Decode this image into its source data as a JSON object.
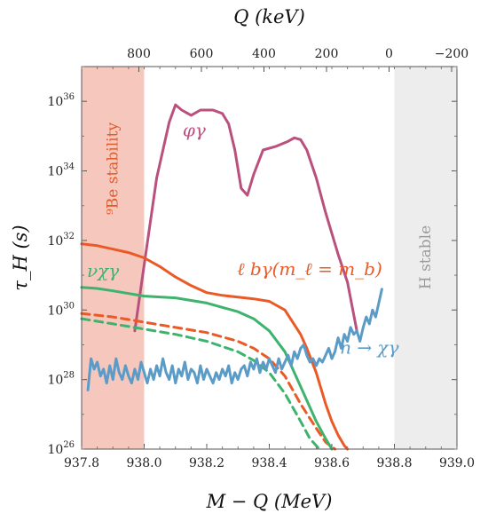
{
  "chart_data": {
    "type": "line",
    "xlabel": "M − Q (MeV)",
    "ylabel": "τ_H (s)",
    "x2label": "Q (keV)",
    "xlim": [
      937.8,
      939.0
    ],
    "ylim_log10": [
      26,
      37
    ],
    "yscale": "log",
    "grid": false,
    "x_ticks": [
      "937.8",
      "938.0",
      "938.2",
      "938.4",
      "938.6",
      "938.8",
      "939.0"
    ],
    "x_tick_values": [
      937.8,
      938.0,
      938.2,
      938.4,
      938.6,
      938.8,
      939.0
    ],
    "x2_ticks": [
      "800",
      "600",
      "400",
      "200",
      "0",
      "−200"
    ],
    "x2_tick_values_keV": [
      800,
      600,
      400,
      200,
      0,
      -200
    ],
    "y_ticks": [
      {
        "base": "10",
        "exp": "26",
        "log10": 26
      },
      {
        "base": "10",
        "exp": "28",
        "log10": 28
      },
      {
        "base": "10",
        "exp": "30",
        "log10": 30
      },
      {
        "base": "10",
        "exp": "32",
        "log10": 32
      },
      {
        "base": "10",
        "exp": "34",
        "log10": 34
      },
      {
        "base": "10",
        "exp": "36",
        "log10": 36
      }
    ],
    "regions": [
      {
        "label": "⁹Be stability",
        "x_range": [
          937.8,
          938.0
        ],
        "color": "#f6c8bd",
        "label_color": "#e05a2b"
      },
      {
        "label": "H stable",
        "x_range": [
          938.8,
          939.0
        ],
        "color": "#ededed",
        "label_color": "#9a9a9a"
      }
    ],
    "series": [
      {
        "name": "φγ",
        "color": "#b9507e",
        "dashed": false,
        "x": [
          937.97,
          938.0,
          938.04,
          938.08,
          938.1,
          938.12,
          938.15,
          938.18,
          938.22,
          938.25,
          938.27,
          938.29,
          938.31,
          938.33,
          938.35,
          938.38,
          938.42,
          938.46,
          938.48,
          938.5,
          938.52,
          938.55,
          938.58,
          938.62,
          938.65,
          938.68
        ],
        "log10_y": [
          29.4,
          31.3,
          33.8,
          35.4,
          35.9,
          35.75,
          35.6,
          35.75,
          35.75,
          35.65,
          35.35,
          34.6,
          33.5,
          33.3,
          33.9,
          34.6,
          34.7,
          34.85,
          34.95,
          34.9,
          34.6,
          33.8,
          32.8,
          31.6,
          30.8,
          29.4
        ],
        "label_position": {
          "x": 938.16,
          "log10_y": 35.0
        },
        "label_anchor": "middle",
        "label_color": "#b9507e"
      },
      {
        "name": "ℓ bγ(m_ℓ = m_b)",
        "color": "#ea5a26",
        "dashed": false,
        "x": [
          937.8,
          937.85,
          937.9,
          937.95,
          938.0,
          938.05,
          938.1,
          938.15,
          938.2,
          938.25,
          938.3,
          938.35,
          938.4,
          938.45,
          938.5,
          938.52,
          938.55,
          938.58,
          938.6,
          938.62,
          938.64,
          938.65
        ],
        "log10_y": [
          31.9,
          31.85,
          31.75,
          31.65,
          31.5,
          31.25,
          30.95,
          30.7,
          30.5,
          30.42,
          30.37,
          30.32,
          30.25,
          30.0,
          29.3,
          28.9,
          28.2,
          27.3,
          26.8,
          26.4,
          26.1,
          26.0
        ],
        "label_position": {
          "x": 938.28,
          "log10_y": 31.0
        },
        "label_anchor": "start",
        "label_color": "#ea5a26"
      },
      {
        "name": "ℓ bγ dashed",
        "color": "#ea5a26",
        "dashed": true,
        "x": [
          937.8,
          937.9,
          938.0,
          938.1,
          938.2,
          938.3,
          938.35,
          938.4,
          938.45,
          938.5,
          938.55,
          938.58,
          938.61
        ],
        "log10_y": [
          29.9,
          29.8,
          29.65,
          29.5,
          29.35,
          29.1,
          28.9,
          28.6,
          28.1,
          27.3,
          26.6,
          26.2,
          26.0
        ]
      },
      {
        "name": "νχγ",
        "color": "#3db36e",
        "dashed": false,
        "x": [
          937.8,
          937.85,
          937.9,
          938.0,
          938.1,
          938.2,
          938.3,
          938.35,
          938.4,
          938.45,
          938.5,
          938.55,
          938.58,
          938.6
        ],
        "log10_y": [
          30.65,
          30.62,
          30.55,
          30.4,
          30.35,
          30.2,
          29.95,
          29.75,
          29.4,
          28.8,
          27.8,
          26.8,
          26.3,
          26.0
        ],
        "label_position": {
          "x": 937.8,
          "log10_y": 30.95
        },
        "label_anchor": "start",
        "label_color": "#3db36e"
      },
      {
        "name": "νχγ dashed",
        "color": "#3db36e",
        "dashed": true,
        "x": [
          937.8,
          937.9,
          938.0,
          938.1,
          938.2,
          938.3,
          938.35,
          938.4,
          938.45,
          938.5,
          938.53,
          938.56
        ],
        "log10_y": [
          29.75,
          29.6,
          29.45,
          29.3,
          29.1,
          28.8,
          28.55,
          28.2,
          27.6,
          26.8,
          26.3,
          26.0
        ]
      },
      {
        "name": "n → χγ",
        "color": "#5b9bc8",
        "dashed": false,
        "x": [
          937.82,
          937.83,
          937.84,
          937.85,
          937.86,
          937.87,
          937.88,
          937.89,
          937.9,
          937.91,
          937.92,
          937.93,
          937.94,
          937.95,
          937.96,
          937.97,
          937.98,
          937.99,
          938.0,
          938.01,
          938.02,
          938.03,
          938.04,
          938.05,
          938.06,
          938.07,
          938.08,
          938.09,
          938.1,
          938.11,
          938.12,
          938.13,
          938.14,
          938.15,
          938.16,
          938.17,
          938.18,
          938.19,
          938.2,
          938.21,
          938.22,
          938.23,
          938.24,
          938.25,
          938.26,
          938.27,
          938.28,
          938.29,
          938.3,
          938.31,
          938.32,
          938.33,
          938.34,
          938.35,
          938.36,
          938.37,
          938.38,
          938.39,
          938.4,
          938.41,
          938.42,
          938.43,
          938.44,
          938.45,
          938.46,
          938.47,
          938.48,
          938.49,
          938.5,
          938.51,
          938.52,
          938.53,
          938.54,
          938.55,
          938.56,
          938.57,
          938.58,
          938.59,
          938.6,
          938.61,
          938.62,
          938.63,
          938.64,
          938.65,
          938.66,
          938.67,
          938.68,
          938.69,
          938.7,
          938.71,
          938.72,
          938.73,
          938.74,
          938.75,
          938.76
        ],
        "log10_y": [
          27.7,
          28.6,
          28.3,
          28.5,
          28.1,
          28.3,
          27.9,
          28.4,
          28.0,
          28.6,
          28.2,
          28.0,
          28.4,
          28.1,
          27.9,
          28.3,
          28.0,
          28.5,
          28.2,
          27.9,
          28.3,
          28.0,
          28.4,
          28.1,
          28.6,
          28.2,
          28.0,
          28.4,
          27.9,
          28.3,
          28.1,
          28.5,
          28.0,
          28.3,
          28.2,
          27.9,
          28.4,
          28.0,
          28.3,
          28.1,
          27.9,
          28.2,
          28.0,
          28.3,
          28.1,
          28.4,
          27.9,
          28.2,
          28.0,
          28.3,
          28.4,
          28.1,
          28.5,
          28.3,
          28.6,
          28.2,
          28.5,
          28.3,
          28.6,
          28.4,
          28.2,
          28.6,
          28.3,
          28.5,
          28.7,
          28.4,
          28.8,
          28.6,
          28.9,
          29.0,
          28.7,
          28.5,
          28.6,
          28.4,
          28.6,
          28.5,
          28.7,
          28.9,
          28.6,
          28.8,
          29.2,
          28.9,
          29.3,
          29.1,
          29.5,
          29.3,
          29.4,
          29.1,
          29.5,
          29.8,
          29.6,
          30.0,
          29.8,
          30.2,
          30.6
        ],
        "label_position": {
          "x": 938.72,
          "log10_y": 28.75
        },
        "label_anchor": "middle",
        "label_color": "#5b9bc8"
      }
    ]
  }
}
